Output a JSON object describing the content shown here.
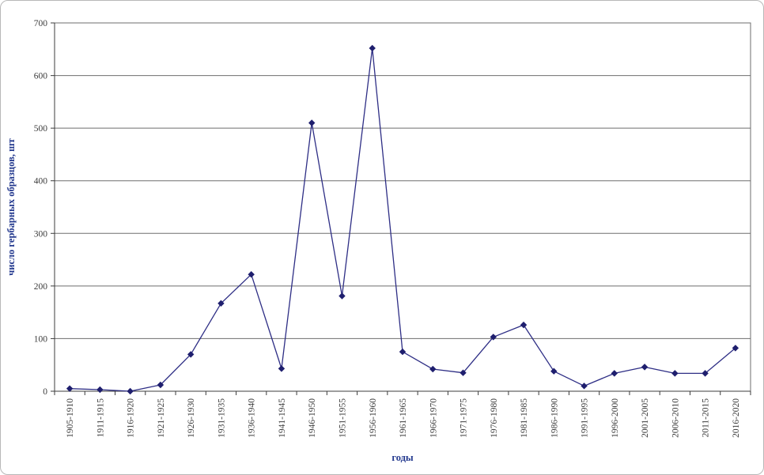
{
  "chart_data": {
    "type": "line",
    "title": "",
    "xlabel": "годы",
    "ylabel": "число гербарных образцов, шт",
    "categories": [
      "1905-1910",
      "1911-1915",
      "1916-1920",
      "1921-1925",
      "1926-1930",
      "1931-1935",
      "1936-1940",
      "1941-1945",
      "1946-1950",
      "1951-1955",
      "1956-1960",
      "1961-1965",
      "1966-1970",
      "1971-1975",
      "1976-1980",
      "1981-1985",
      "1986-1990",
      "1991-1995",
      "1996-2000",
      "2001-2005",
      "2006-2010",
      "2011-2015",
      "2016-2020"
    ],
    "values": [
      5,
      3,
      0,
      12,
      70,
      167,
      222,
      43,
      510,
      181,
      652,
      75,
      42,
      35,
      103,
      126,
      38,
      10,
      34,
      46,
      34,
      34,
      82
    ],
    "ylim": [
      0,
      700
    ],
    "yticks": [
      0,
      100,
      200,
      300,
      400,
      500,
      600,
      700
    ],
    "grid": true,
    "legend": false,
    "marker": "diamond",
    "line_color": "#2e2e85",
    "marker_color": "#1f1f6e",
    "grid_color": "#6e6e6e",
    "axis_color": "#3c3c3c",
    "tick_label_color": "#3c3c3c",
    "axis_title_color": "#243a8f"
  }
}
